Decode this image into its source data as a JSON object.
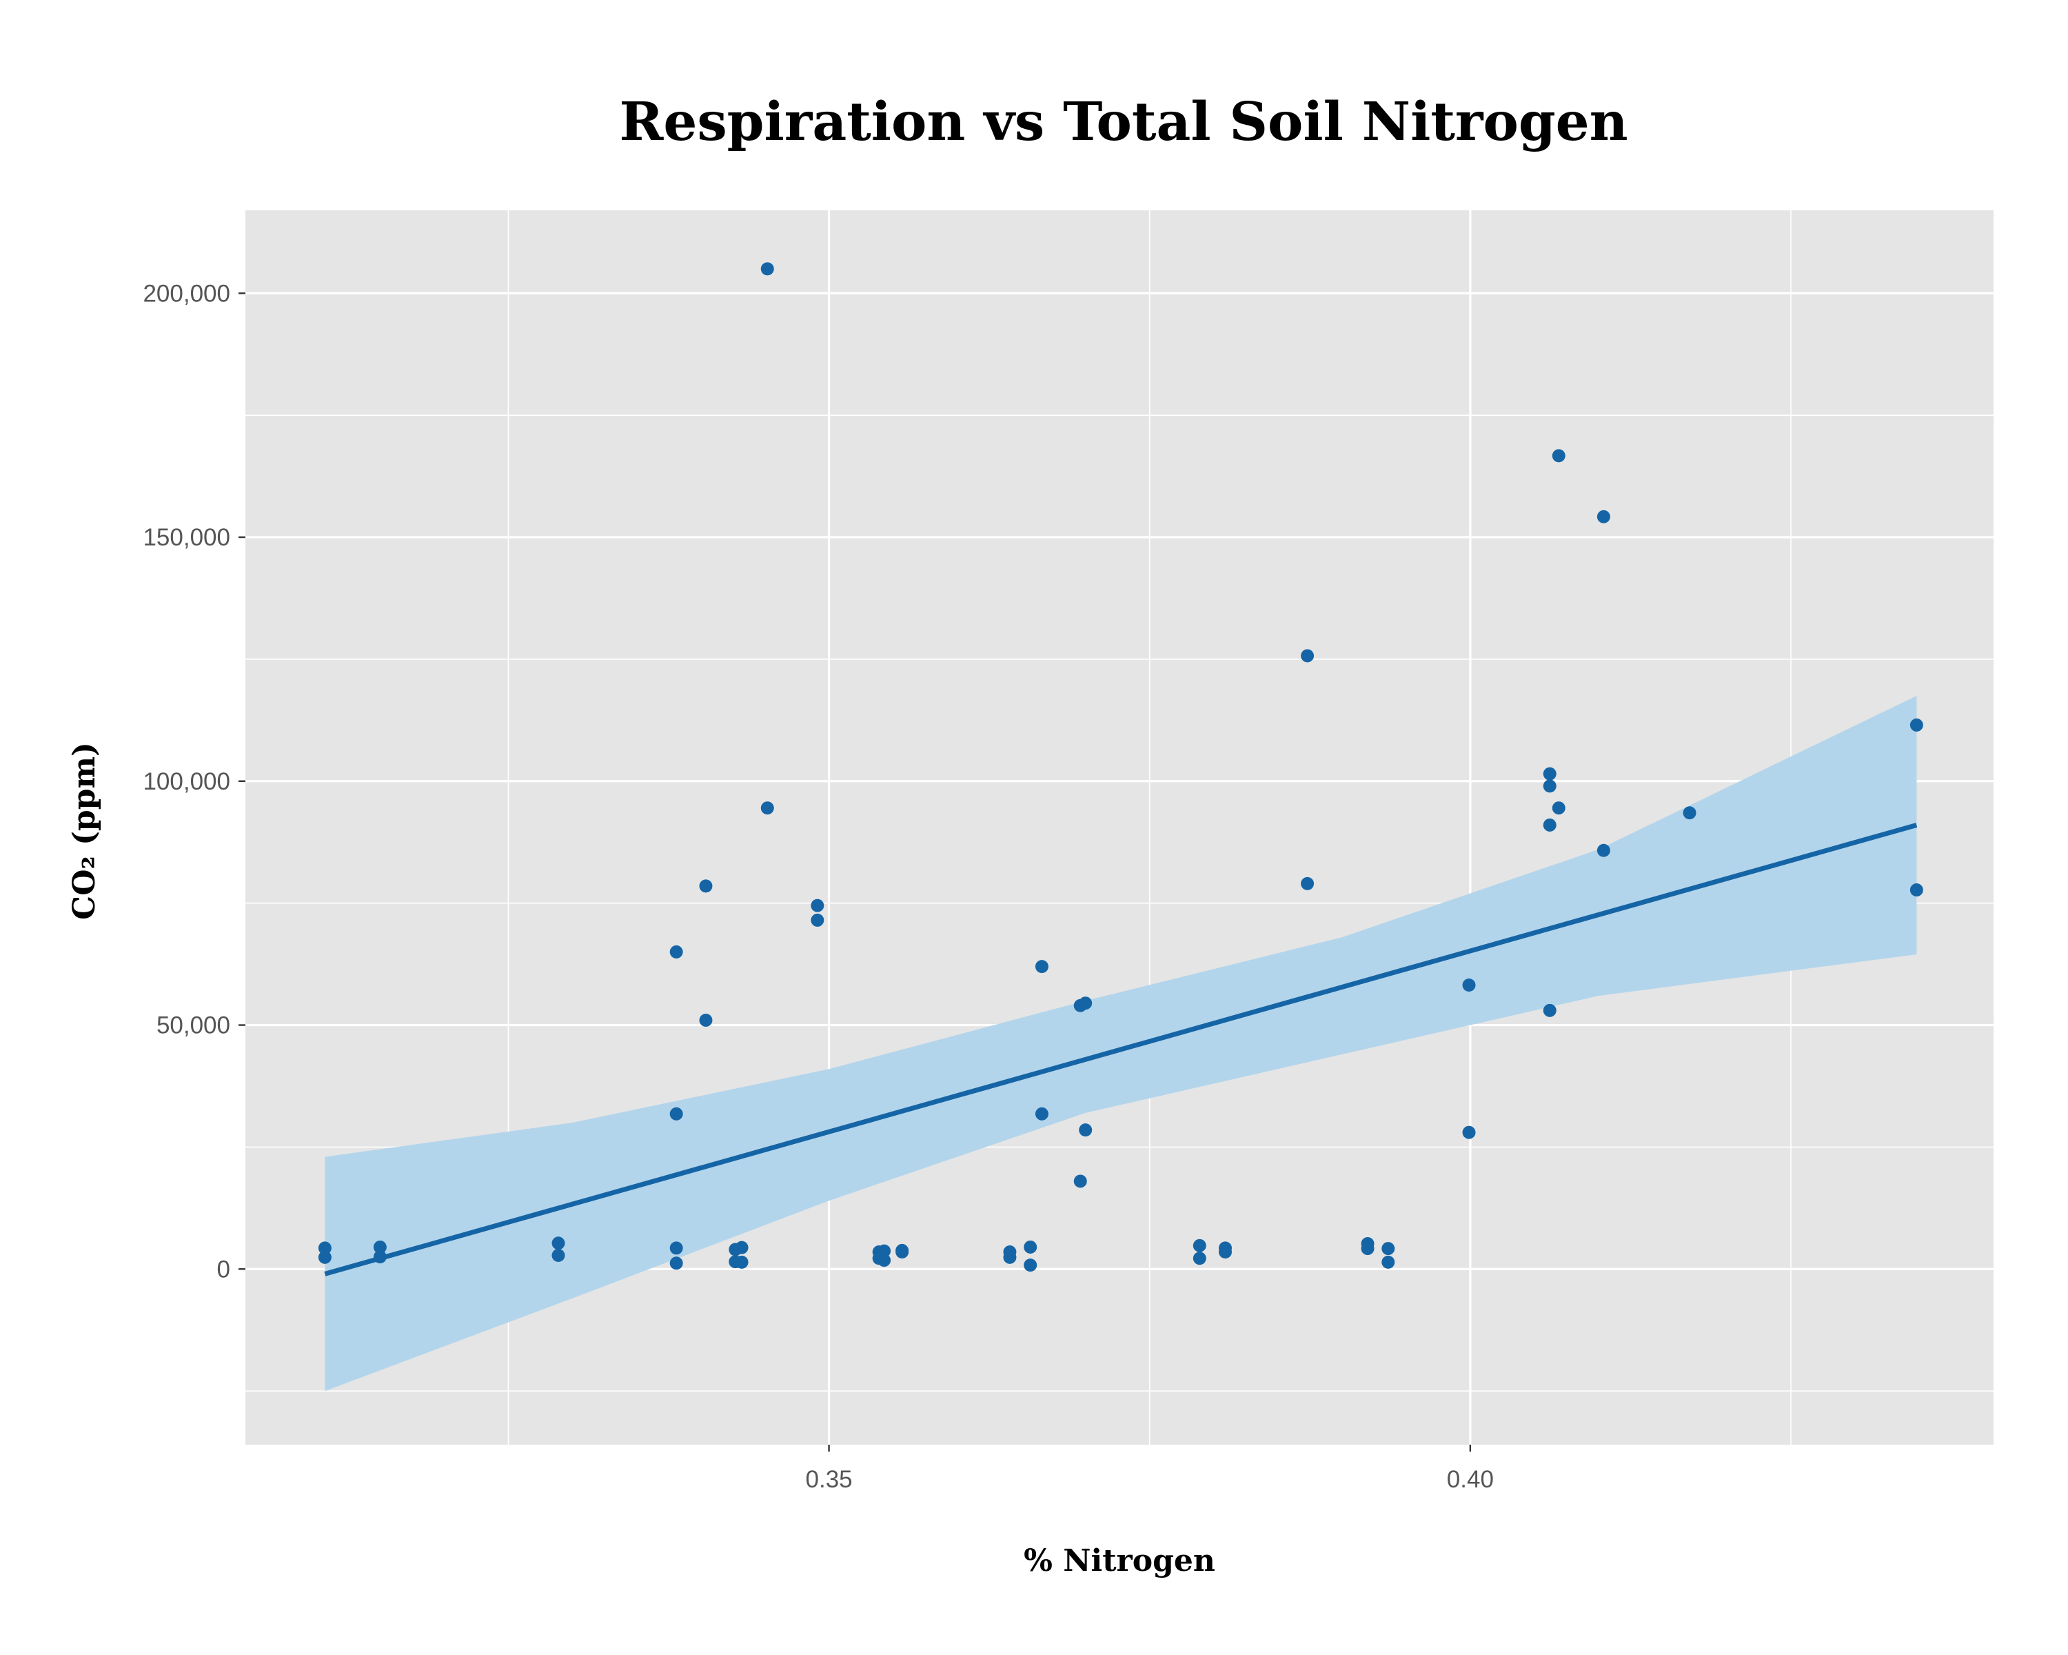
{
  "chart_data": {
    "type": "scatter",
    "title": "Respiration vs Total Soil Nitrogen",
    "xlabel": "% Nitrogen",
    "ylabel": "CO₂ (ppm)",
    "xlim": [
      0.3045,
      0.4408
    ],
    "ylim": [
      -36000,
      217000
    ],
    "x_ticks": [
      0.35,
      0.4
    ],
    "x_tick_labels": [
      "0.35",
      "0.40"
    ],
    "x_minor_ticks": [
      0.325,
      0.375,
      0.425
    ],
    "y_ticks": [
      0,
      50000,
      100000,
      150000,
      200000
    ],
    "y_tick_labels": [
      "0",
      "50,000",
      "100,000",
      "150,000",
      "200,000"
    ],
    "y_minor_ticks": [
      -25000,
      25000,
      75000,
      125000,
      175000
    ],
    "grid": true,
    "colors": {
      "points": "#1565a6",
      "fit_line": "#1565a6",
      "confidence_band": "#b3d5ec",
      "panel_background": "#e5e5e5",
      "gridline": "#ffffff"
    },
    "series": [
      {
        "points": [
          {
            "x": 0.3107,
            "y": 4300
          },
          {
            "x": 0.3107,
            "y": 2400
          },
          {
            "x": 0.315,
            "y": 4500
          },
          {
            "x": 0.315,
            "y": 2500
          },
          {
            "x": 0.3289,
            "y": 5300
          },
          {
            "x": 0.3289,
            "y": 2800
          },
          {
            "x": 0.3381,
            "y": 65000
          },
          {
            "x": 0.3381,
            "y": 31800
          },
          {
            "x": 0.3381,
            "y": 4300
          },
          {
            "x": 0.3381,
            "y": 1200
          },
          {
            "x": 0.3404,
            "y": 78500
          },
          {
            "x": 0.3404,
            "y": 51000
          },
          {
            "x": 0.3427,
            "y": 4000
          },
          {
            "x": 0.3427,
            "y": 1500
          },
          {
            "x": 0.3432,
            "y": 4400
          },
          {
            "x": 0.3432,
            "y": 1400
          },
          {
            "x": 0.3452,
            "y": 205000
          },
          {
            "x": 0.3452,
            "y": 94500
          },
          {
            "x": 0.3491,
            "y": 74500
          },
          {
            "x": 0.3491,
            "y": 71500
          },
          {
            "x": 0.3539,
            "y": 3500
          },
          {
            "x": 0.3539,
            "y": 2200
          },
          {
            "x": 0.3543,
            "y": 3700
          },
          {
            "x": 0.3543,
            "y": 1800
          },
          {
            "x": 0.3557,
            "y": 3800
          },
          {
            "x": 0.3557,
            "y": 3500
          },
          {
            "x": 0.3641,
            "y": 3500
          },
          {
            "x": 0.3641,
            "y": 2400
          },
          {
            "x": 0.3657,
            "y": 4500
          },
          {
            "x": 0.3657,
            "y": 800
          },
          {
            "x": 0.3666,
            "y": 62000
          },
          {
            "x": 0.3666,
            "y": 31800
          },
          {
            "x": 0.3696,
            "y": 54000
          },
          {
            "x": 0.3696,
            "y": 18000
          },
          {
            "x": 0.37,
            "y": 54500
          },
          {
            "x": 0.37,
            "y": 28500
          },
          {
            "x": 0.3789,
            "y": 4800
          },
          {
            "x": 0.3789,
            "y": 2200
          },
          {
            "x": 0.3809,
            "y": 4300
          },
          {
            "x": 0.3809,
            "y": 3500
          },
          {
            "x": 0.3873,
            "y": 125700
          },
          {
            "x": 0.3873,
            "y": 79000
          },
          {
            "x": 0.392,
            "y": 5200
          },
          {
            "x": 0.392,
            "y": 4200
          },
          {
            "x": 0.3936,
            "y": 4200
          },
          {
            "x": 0.3936,
            "y": 1400
          },
          {
            "x": 0.3999,
            "y": 58200
          },
          {
            "x": 0.3999,
            "y": 28000
          },
          {
            "x": 0.4062,
            "y": 101500
          },
          {
            "x": 0.4062,
            "y": 99000
          },
          {
            "x": 0.4062,
            "y": 91000
          },
          {
            "x": 0.4062,
            "y": 53000
          },
          {
            "x": 0.4069,
            "y": 166700
          },
          {
            "x": 0.4069,
            "y": 94500
          },
          {
            "x": 0.4104,
            "y": 154200
          },
          {
            "x": 0.4104,
            "y": 85800
          },
          {
            "x": 0.4171,
            "y": 93500
          },
          {
            "x": 0.4348,
            "y": 111500
          },
          {
            "x": 0.4348,
            "y": 77700
          }
        ]
      }
    ],
    "fit_line": {
      "x": [
        0.3107,
        0.4348
      ],
      "y": [
        -1000,
        91000
      ]
    },
    "confidence_band": {
      "x": [
        0.3107,
        0.33,
        0.35,
        0.37,
        0.39,
        0.41,
        0.4348
      ],
      "upper": [
        23000,
        30000,
        41000,
        55000,
        68000,
        86000,
        117500
      ],
      "lower": [
        -25000,
        -6000,
        14000,
        32000,
        44000,
        56000,
        64500
      ]
    }
  }
}
